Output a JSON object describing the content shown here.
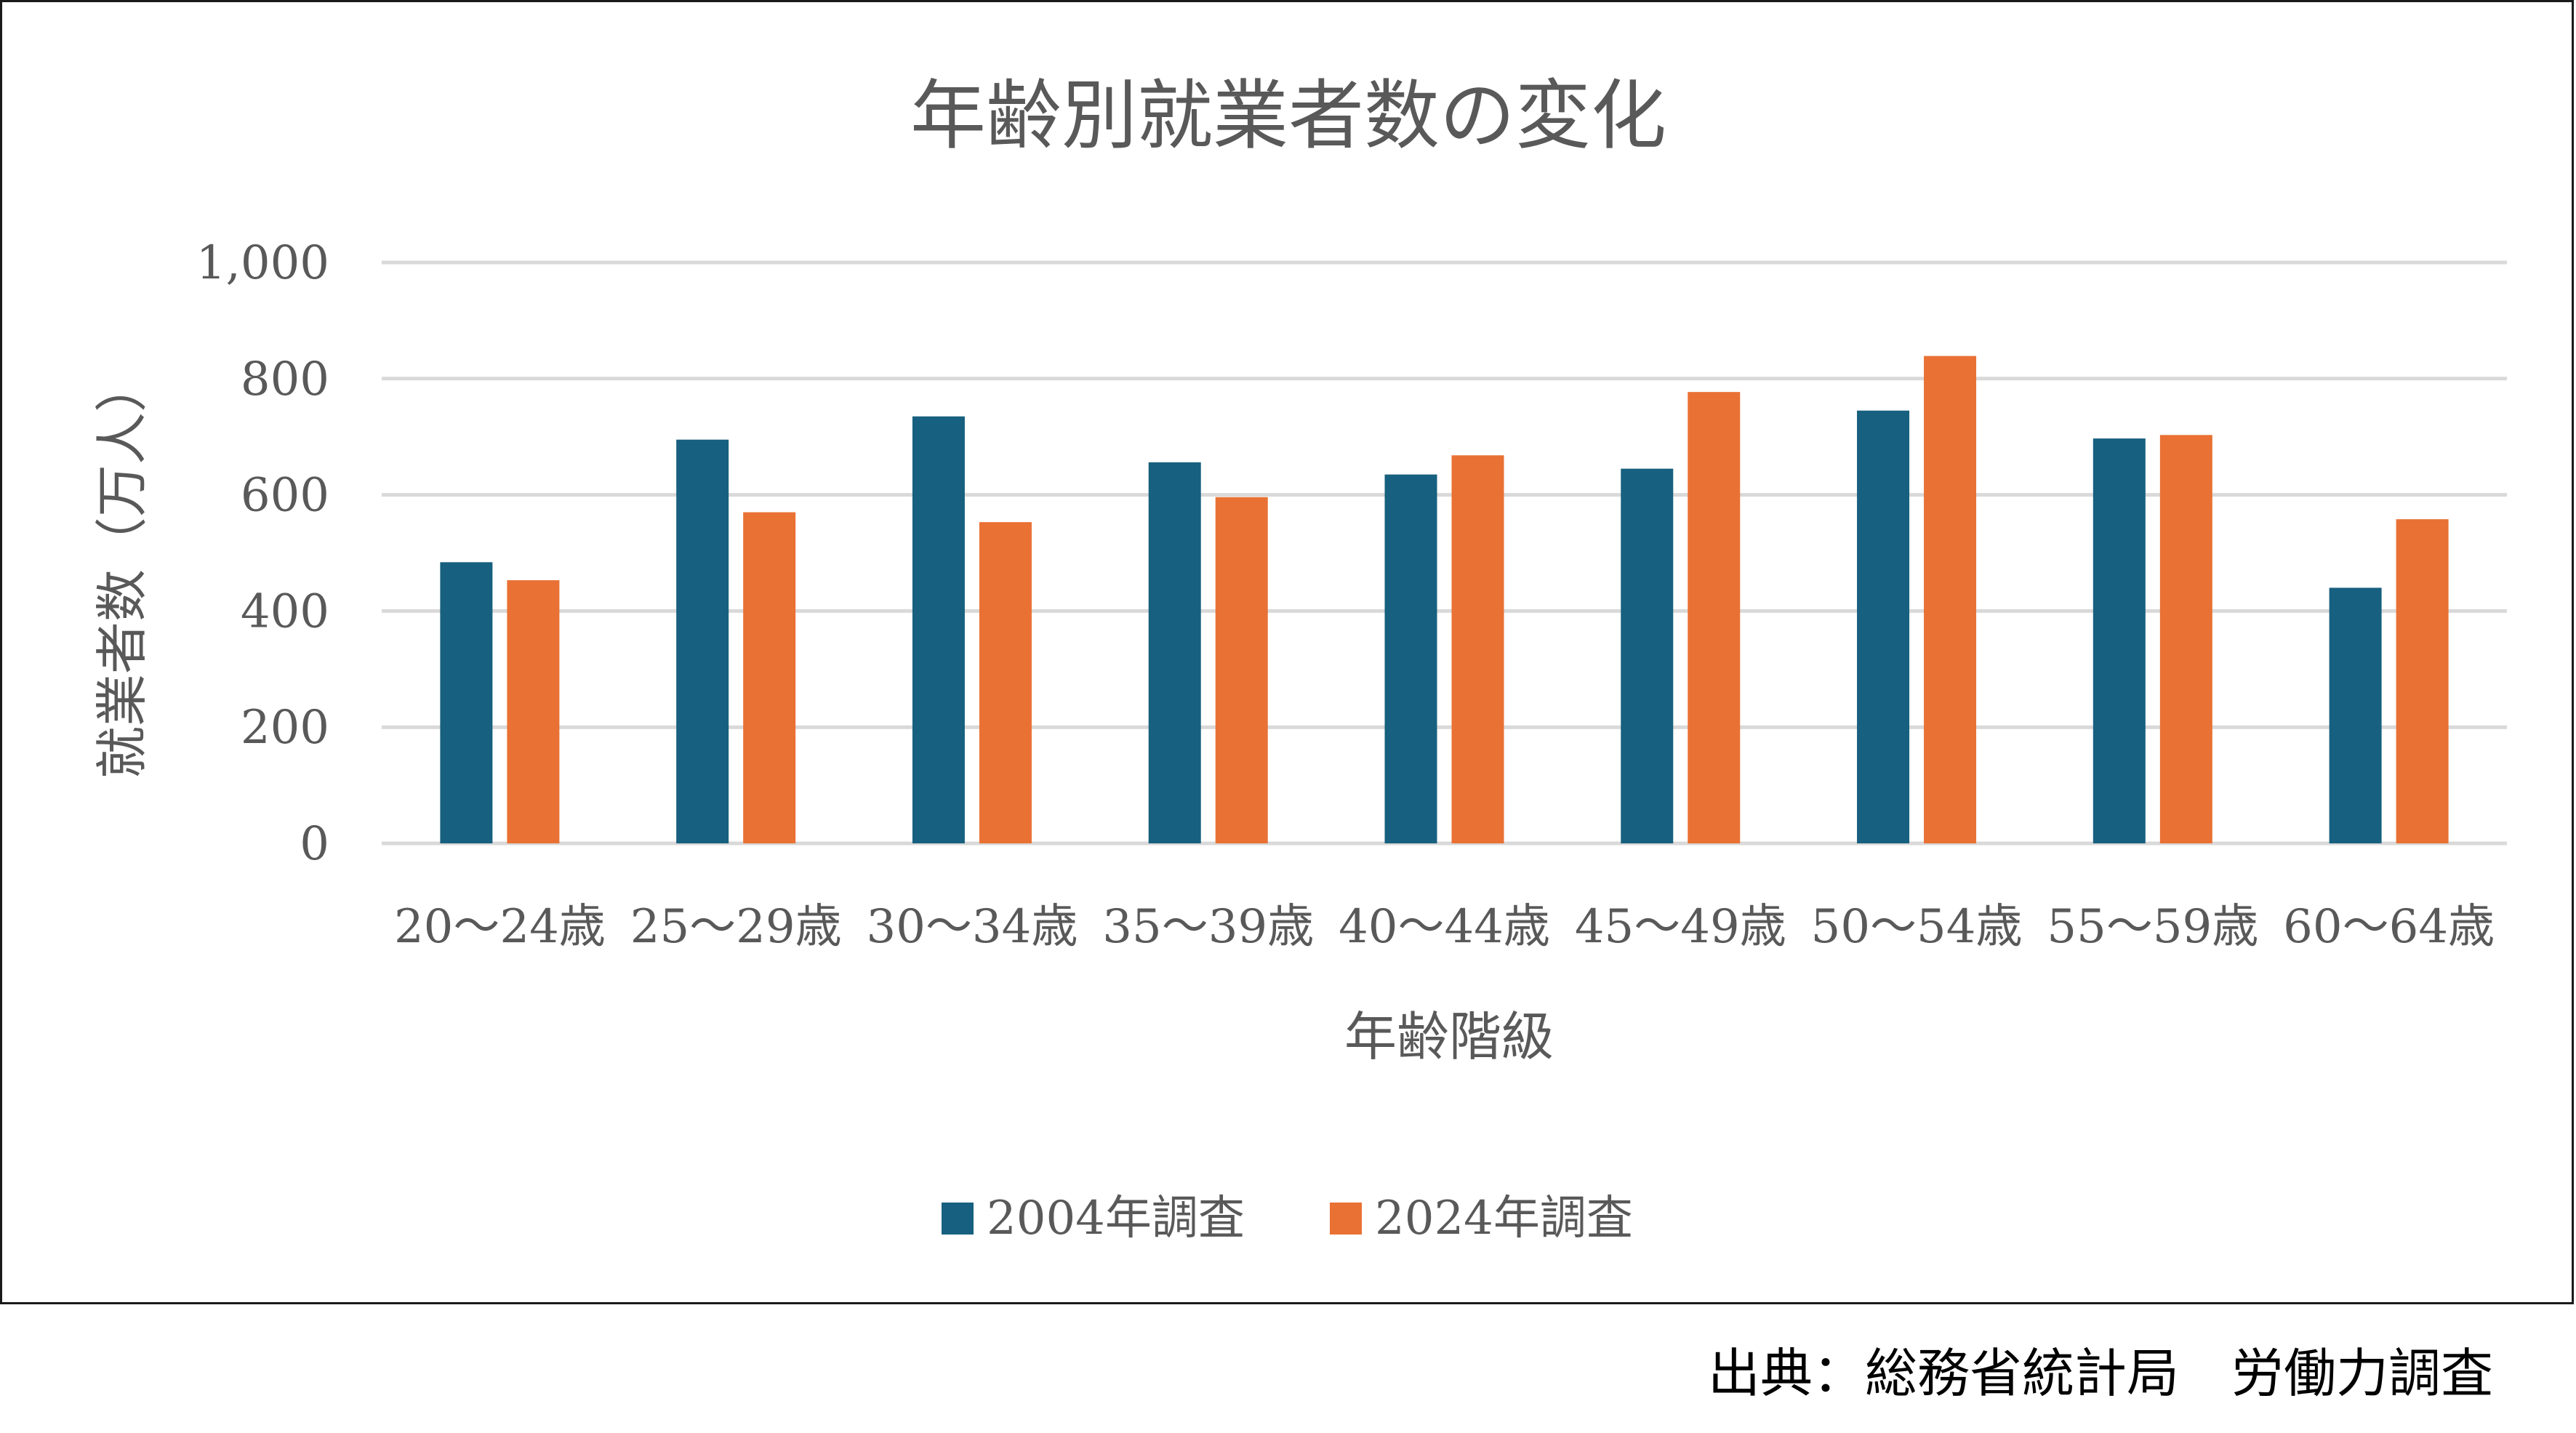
{
  "chart_data": {
    "type": "bar",
    "title": "年齢別就業者数の変化",
    "xlabel": "年齢階級",
    "ylabel": "就業者数（万人）",
    "categories": [
      "20～24歳",
      "25～29歳",
      "30～34歳",
      "35～39歳",
      "40～44歳",
      "45～49歳",
      "50～54歳",
      "55～59歳",
      "60～64歳"
    ],
    "series": [
      {
        "name": "2004年調査",
        "values": [
          484,
          695,
          735,
          656,
          635,
          645,
          745,
          697,
          440
        ]
      },
      {
        "name": "2024年調査",
        "values": [
          453,
          570,
          553,
          596,
          668,
          777,
          839,
          703,
          558
        ]
      }
    ],
    "ylim": [
      0,
      1000
    ],
    "yticks": [
      0,
      200,
      400,
      600,
      800,
      1000
    ],
    "ytick_labels": [
      "0",
      "200",
      "400",
      "600",
      "800",
      "1,000"
    ],
    "grid": true,
    "legend": "bottom",
    "colors": [
      "#17607f",
      "#e97134"
    ]
  },
  "source_note": "出典：総務省統計局　労働力調査"
}
